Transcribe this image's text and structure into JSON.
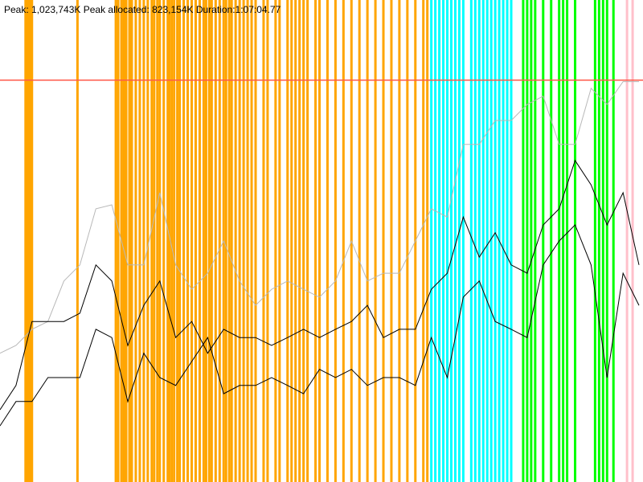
{
  "chart_data": {
    "type": "line",
    "title": "Peak: 1,023,743K   Peak allocated: 823,154K   Duration:1:07:04.77",
    "xlim": [
      0,
      4025
    ],
    "ylim": [
      0,
      1228000
    ],
    "peak_line": 1023743,
    "peak_color": "#ff5a4a",
    "x": [
      0,
      100,
      200,
      300,
      400,
      500,
      600,
      700,
      800,
      900,
      1000,
      1100,
      1200,
      1300,
      1400,
      1500,
      1600,
      1700,
      1800,
      1900,
      2000,
      2100,
      2200,
      2300,
      2400,
      2500,
      2600,
      2700,
      2800,
      2900,
      3000,
      3100,
      3200,
      3300,
      3400,
      3500,
      3600,
      3700,
      3800,
      3900,
      4000
    ],
    "series": [
      {
        "color": "#b8b8b8",
        "values": [
          328000,
          348000,
          389000,
          409000,
          512000,
          553000,
          696000,
          706000,
          553000,
          553000,
          737000,
          553000,
          491000,
          532000,
          614000,
          512000,
          450000,
          491000,
          512000,
          491000,
          471000,
          512000,
          614000,
          512000,
          532000,
          532000,
          614000,
          696000,
          675000,
          860000,
          860000,
          921000,
          921000,
          962000,
          983000,
          860000,
          860000,
          1003000,
          962000,
          1020000,
          1020000
        ]
      },
      {
        "color": "#000000",
        "values": [
          184000,
          246000,
          409000,
          409000,
          409000,
          430000,
          553000,
          512000,
          348000,
          450000,
          512000,
          368000,
          409000,
          328000,
          389000,
          368000,
          368000,
          348000,
          368000,
          389000,
          368000,
          389000,
          409000,
          450000,
          368000,
          389000,
          389000,
          491000,
          532000,
          675000,
          573000,
          635000,
          553000,
          532000,
          655000,
          696000,
          819000,
          757000,
          655000,
          737000,
          553000
        ]
      },
      {
        "color": "#000000",
        "values": [
          143000,
          205000,
          205000,
          266000,
          266000,
          266000,
          389000,
          368000,
          205000,
          328000,
          266000,
          246000,
          307000,
          368000,
          225000,
          246000,
          246000,
          266000,
          246000,
          225000,
          287000,
          266000,
          287000,
          246000,
          266000,
          266000,
          246000,
          368000,
          266000,
          471000,
          512000,
          409000,
          389000,
          368000,
          553000,
          614000,
          655000,
          553000,
          266000,
          532000,
          450000
        ]
      }
    ],
    "events": [
      {
        "color": "#ffa500",
        "x": [
          160,
          170,
          180,
          190,
          200,
          485,
          725,
          740,
          760,
          775,
          790,
          810,
          825,
          850,
          875,
          900,
          925,
          950,
          965,
          985,
          1000,
          1025,
          1050,
          1060,
          1075,
          1090,
          1110,
          1125,
          1150,
          1175,
          1200,
          1225,
          1250,
          1275,
          1290,
          1310,
          1325,
          1350,
          1375,
          1400,
          1415,
          1435,
          1450,
          1475,
          1500,
          1525,
          1550,
          1575,
          1600,
          1650,
          1675,
          1725,
          1750,
          1800,
          1825,
          1850,
          1875,
          1900,
          1925,
          1975,
          2000,
          2050,
          2100,
          2150,
          2200,
          2250,
          2300,
          2350,
          2400,
          2450,
          2500,
          2550,
          2600,
          2650,
          2675
        ]
      },
      {
        "color": "#00ffff",
        "x": [
          2700,
          2725,
          2750,
          2775,
          2800,
          2825,
          2850,
          2875,
          2900,
          2950,
          2975,
          3000,
          3025,
          3050,
          3075,
          3100,
          3125,
          3150,
          3175,
          3200
        ]
      },
      {
        "color": "#00ff00",
        "x": [
          3275,
          3300,
          3325,
          3350,
          3400,
          3450,
          3500,
          3525,
          3550,
          3600,
          3725,
          3750,
          3775,
          3800,
          3840
        ]
      },
      {
        "color": "#ffc0cb",
        "x": [
          3925,
          3960
        ]
      }
    ]
  }
}
